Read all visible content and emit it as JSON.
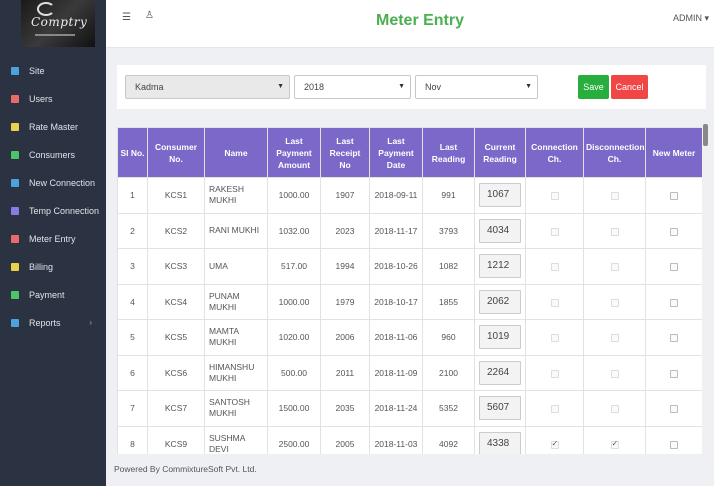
{
  "header": {
    "title": "Meter Entry",
    "admin_label": "ADMIN ▾"
  },
  "sidebar": {
    "logo_text": "Comptry",
    "items": [
      {
        "label": "Site",
        "icon": "chart-icon",
        "color": "#4aa3df"
      },
      {
        "label": "Users",
        "icon": "users-icon",
        "color": "#e86a6a"
      },
      {
        "label": "Rate Master",
        "icon": "rate-icon",
        "color": "#e8d24a"
      },
      {
        "label": "Consumers",
        "icon": "consumers-icon",
        "color": "#4cc46a"
      },
      {
        "label": "New Connection",
        "icon": "connection-icon",
        "color": "#4aa3df"
      },
      {
        "label": "Temp Connection",
        "icon": "temp-icon",
        "color": "#8a7be0"
      },
      {
        "label": "Meter Entry",
        "icon": "meter-icon",
        "color": "#e86a6a"
      },
      {
        "label": "Billing",
        "icon": "billing-icon",
        "color": "#e8d24a"
      },
      {
        "label": "Payment",
        "icon": "rupee-icon",
        "color": "#4cc46a"
      },
      {
        "label": "Reports",
        "icon": "reports-icon",
        "color": "#4aa3df"
      }
    ]
  },
  "filters": {
    "site": "Kadma",
    "year": "2018",
    "month": "Nov",
    "save_label": "Save",
    "cancel_label": "Cancel"
  },
  "table": {
    "headers": {
      "sl": "Sl No.",
      "consumer": "Consumer No.",
      "name": "Name",
      "last_payment_amount": "Last Payment Amount",
      "last_receipt": "Last Receipt No",
      "last_payment_date": "Last Payment Date",
      "last_reading": "Last Reading",
      "current_reading": "Current Reading",
      "connection": "Connection Ch.",
      "disconnection": "Disconnection Ch.",
      "new_meter": "New Meter"
    },
    "rows": [
      {
        "sl": "1",
        "consumer": "KCS1",
        "name": "RAKESH MUKHI",
        "amount": "1000.00",
        "receipt": "1907",
        "date": "2018-09-11",
        "last_reading": "991",
        "current_reading": "1067",
        "connection": false,
        "disconnection": false,
        "new_meter": false
      },
      {
        "sl": "2",
        "consumer": "KCS2",
        "name": "RANI MUKHI",
        "amount": "1032.00",
        "receipt": "2023",
        "date": "2018-11-17",
        "last_reading": "3793",
        "current_reading": "4034",
        "connection": false,
        "disconnection": false,
        "new_meter": false
      },
      {
        "sl": "3",
        "consumer": "KCS3",
        "name": "UMA",
        "amount": "517.00",
        "receipt": "1994",
        "date": "2018-10-26",
        "last_reading": "1082",
        "current_reading": "1212",
        "connection": false,
        "disconnection": false,
        "new_meter": false
      },
      {
        "sl": "4",
        "consumer": "KCS4",
        "name": "PUNAM MUKHI",
        "amount": "1000.00",
        "receipt": "1979",
        "date": "2018-10-17",
        "last_reading": "1855",
        "current_reading": "2062",
        "connection": false,
        "disconnection": false,
        "new_meter": false
      },
      {
        "sl": "5",
        "consumer": "KCS5",
        "name": "MAMTA MUKHI",
        "amount": "1020.00",
        "receipt": "2006",
        "date": "2018-11-06",
        "last_reading": "960",
        "current_reading": "1019",
        "connection": false,
        "disconnection": false,
        "new_meter": false
      },
      {
        "sl": "6",
        "consumer": "KCS6",
        "name": "HIMANSHU MUKHI",
        "amount": "500.00",
        "receipt": "2011",
        "date": "2018-11-09",
        "last_reading": "2100",
        "current_reading": "2264",
        "connection": false,
        "disconnection": false,
        "new_meter": false
      },
      {
        "sl": "7",
        "consumer": "KCS7",
        "name": "SANTOSH MUKHI",
        "amount": "1500.00",
        "receipt": "2035",
        "date": "2018-11-24",
        "last_reading": "5352",
        "current_reading": "5607",
        "connection": false,
        "disconnection": false,
        "new_meter": false
      },
      {
        "sl": "8",
        "consumer": "KCS9",
        "name": "SUSHMA DEVI",
        "amount": "2500.00",
        "receipt": "2005",
        "date": "2018-11-03",
        "last_reading": "4092",
        "current_reading": "4338",
        "connection": true,
        "disconnection": true,
        "new_meter": false
      }
    ]
  },
  "footer": {
    "text": "Powered By CommixtureSoft Pvt. Ltd."
  }
}
